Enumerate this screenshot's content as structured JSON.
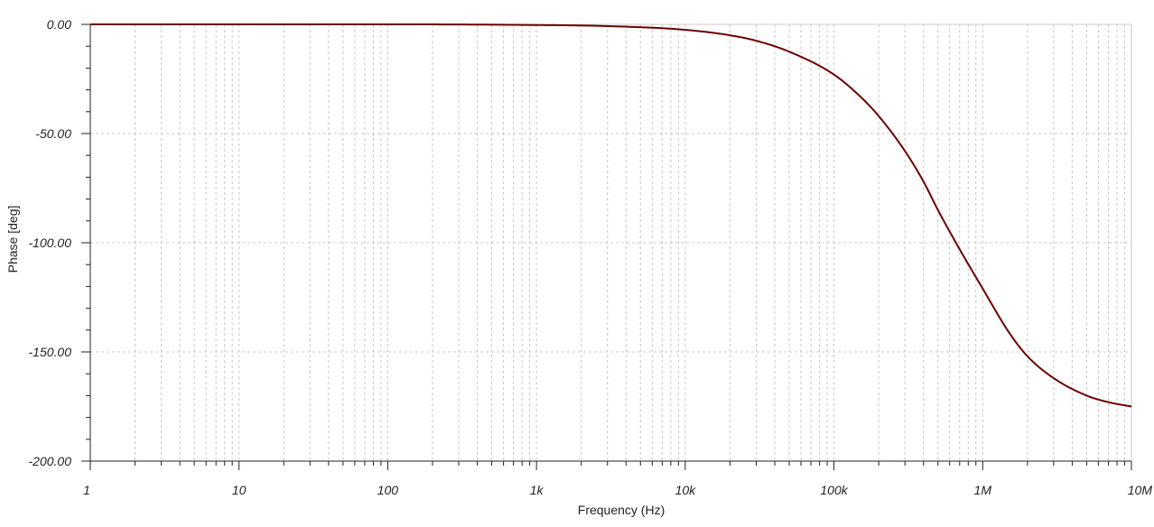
{
  "chart_data": {
    "type": "line",
    "xlabel": "Frequency (Hz)",
    "ylabel": "Phase [deg]",
    "xscale": "log",
    "xlim": [
      1,
      10000000
    ],
    "ylim": [
      -200,
      0
    ],
    "grid": true,
    "line_color": "#6b0000",
    "x_ticks": [
      {
        "value": 1,
        "label": "1"
      },
      {
        "value": 10,
        "label": "10"
      },
      {
        "value": 100,
        "label": "100"
      },
      {
        "value": 1000,
        "label": "1k"
      },
      {
        "value": 10000,
        "label": "10k"
      },
      {
        "value": 100000,
        "label": "100k"
      },
      {
        "value": 1000000,
        "label": "1M"
      },
      {
        "value": 10000000,
        "label": "10M"
      }
    ],
    "y_ticks": [
      {
        "value": 0,
        "label": "0.00"
      },
      {
        "value": -50,
        "label": "-50.00"
      },
      {
        "value": -100,
        "label": "-100.00"
      },
      {
        "value": -150,
        "label": "-150.00"
      },
      {
        "value": -200,
        "label": "-200.00"
      }
    ],
    "series": [
      {
        "x": [
          1,
          10,
          100,
          1000,
          3000,
          10000,
          20000,
          30000,
          50000,
          100000,
          150000,
          200000,
          300000,
          400000,
          500000,
          700000,
          1000000,
          1500000,
          2000000,
          3000000,
          5000000,
          7000000,
          10000000
        ],
        "y": [
          0,
          0,
          0,
          -0.3,
          -0.8,
          -2.5,
          -5,
          -7.5,
          -12.5,
          -23,
          -33,
          -42,
          -58,
          -72,
          -85,
          -103,
          -121,
          -141,
          -152,
          -162,
          -170,
          -173,
          -175
        ]
      }
    ]
  }
}
